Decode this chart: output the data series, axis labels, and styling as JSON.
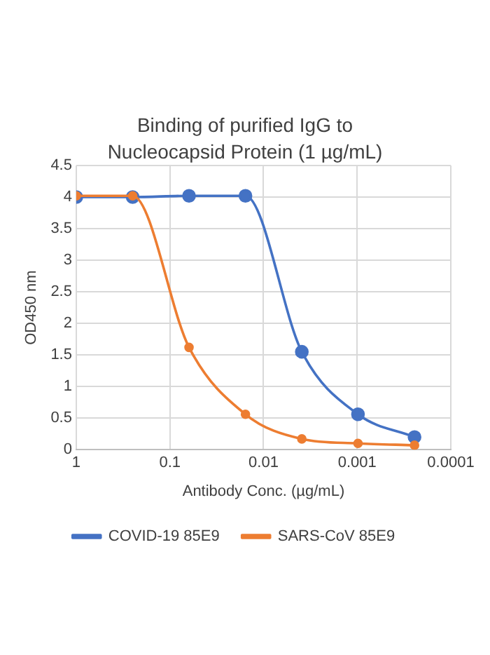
{
  "chart_data": {
    "type": "line",
    "title": "Binding of purified IgG to Nucleocapsid Protein (1 µg/mL)",
    "xlabel": "Antibody Conc. (µg/mL)",
    "ylabel": "OD450 nm",
    "x": [
      1,
      0.25,
      0.0625,
      0.0156,
      0.0039,
      0.00098,
      0.000244
    ],
    "series": [
      {
        "name": "COVID-19 85E9",
        "color": "#4472c4",
        "values": [
          4.0,
          4.0,
          4.02,
          4.02,
          1.55,
          0.56,
          0.2
        ]
      },
      {
        "name": "SARS-CoV 85E9",
        "color": "#ed7d31",
        "values": [
          4.02,
          4.02,
          1.62,
          0.56,
          0.17,
          0.1,
          0.07
        ]
      }
    ],
    "log": "x",
    "xlim": [
      1,
      0.0001
    ],
    "xticks": [
      1,
      0.1,
      0.01,
      0.001,
      0.0001
    ],
    "ylim": [
      0,
      4.5
    ],
    "yticks": [
      0,
      0.5,
      1,
      1.5,
      2,
      2.5,
      3,
      3.5,
      4,
      4.5
    ],
    "grid": true,
    "legend": "bottom",
    "marker": "circle",
    "line_style": "solid"
  }
}
